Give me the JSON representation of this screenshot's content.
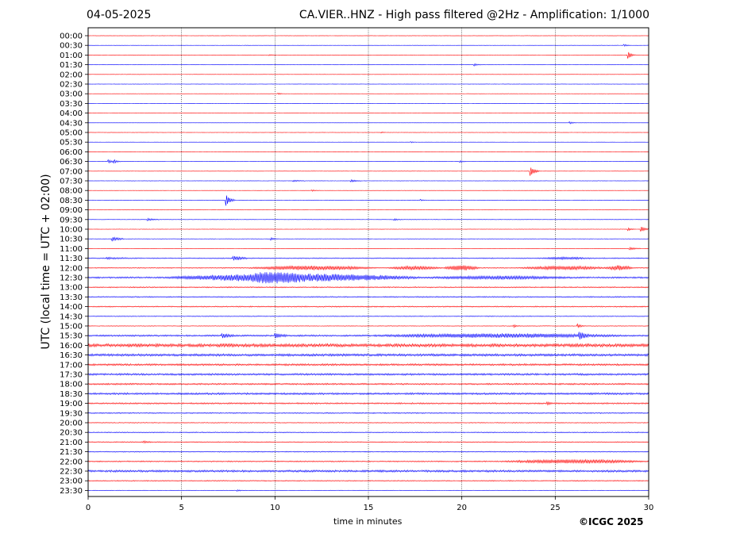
{
  "header": {
    "date": "04-05-2025",
    "title": "CA.VIER..HNZ - High pass filtered @2Hz - Amplification: 1/1000"
  },
  "footer": {
    "copyright": "©ICGC 2025"
  },
  "colors": {
    "trace_even": "#ff0000",
    "trace_odd": "#0000ff",
    "axis": "#000000",
    "grid": "#000000"
  },
  "chart_data": {
    "type": "line",
    "xlabel": "time in minutes",
    "ylabel": "UTC (local time = UTC + 02:00)",
    "xlim": [
      0,
      30
    ],
    "x_ticks": [
      "0",
      "5",
      "10",
      "15",
      "20",
      "25",
      "30"
    ],
    "x_tick_values": [
      0,
      5,
      10,
      15,
      20,
      25,
      30
    ],
    "grid": "vertical dotted at x ticks",
    "trace_spacing_minutes": 30,
    "rows": [
      {
        "label": "00:00",
        "noise": 0.15,
        "events": []
      },
      {
        "label": "00:30",
        "noise": 0.2,
        "events": [
          {
            "t": 28.7,
            "amp": 1.5,
            "dur": 0.1
          }
        ]
      },
      {
        "label": "01:00",
        "noise": 0.2,
        "events": [
          {
            "t": 28.9,
            "amp": 5,
            "dur": 0.1
          },
          {
            "t": 9.7,
            "amp": 1,
            "dur": 0.1
          }
        ]
      },
      {
        "label": "01:30",
        "noise": 0.2,
        "events": [
          {
            "t": 20.7,
            "amp": 1.5,
            "dur": 0.1
          }
        ]
      },
      {
        "label": "02:00",
        "noise": 0.2,
        "events": []
      },
      {
        "label": "02:30",
        "noise": 0.15,
        "events": []
      },
      {
        "label": "03:00",
        "noise": 0.2,
        "events": [
          {
            "t": 10.2,
            "amp": 1,
            "dur": 0.1
          }
        ]
      },
      {
        "label": "03:30",
        "noise": 0.15,
        "events": []
      },
      {
        "label": "04:00",
        "noise": 0.2,
        "events": []
      },
      {
        "label": "04:30",
        "noise": 0.15,
        "events": [
          {
            "t": 25.8,
            "amp": 1.5,
            "dur": 0.1
          }
        ]
      },
      {
        "label": "05:00",
        "noise": 0.15,
        "events": [
          {
            "t": 15.7,
            "amp": 0.8,
            "dur": 0.1
          }
        ]
      },
      {
        "label": "05:30",
        "noise": 0.15,
        "events": [
          {
            "t": 17.3,
            "amp": 0.8,
            "dur": 0.1
          }
        ]
      },
      {
        "label": "06:00",
        "noise": 0.15,
        "events": []
      },
      {
        "label": "06:30",
        "noise": 0.25,
        "events": [
          {
            "t": 1.1,
            "amp": 2,
            "dur": 0.15
          },
          {
            "t": 1.4,
            "amp": 2,
            "dur": 0.1
          },
          {
            "t": 19.9,
            "amp": 1.5,
            "dur": 0.1
          }
        ]
      },
      {
        "label": "07:00",
        "noise": 0.2,
        "events": [
          {
            "t": 23.7,
            "amp": 6,
            "dur": 0.15
          }
        ]
      },
      {
        "label": "07:30",
        "noise": 0.25,
        "events": [
          {
            "t": 14.1,
            "amp": 1.5,
            "dur": 0.2
          },
          {
            "t": 11,
            "amp": 1,
            "dur": 0.3
          }
        ]
      },
      {
        "label": "08:00",
        "noise": 0.2,
        "events": [
          {
            "t": 12,
            "amp": 1,
            "dur": 0.1
          }
        ]
      },
      {
        "label": "08:30",
        "noise": 0.2,
        "events": [
          {
            "t": 7.4,
            "amp": 7,
            "dur": 0.15
          },
          {
            "t": 17.8,
            "amp": 1,
            "dur": 0.1
          }
        ]
      },
      {
        "label": "09:00",
        "noise": 0.2,
        "events": []
      },
      {
        "label": "09:30",
        "noise": 0.3,
        "events": [
          {
            "t": 3.2,
            "amp": 1.5,
            "dur": 0.3
          },
          {
            "t": 16.4,
            "amp": 1,
            "dur": 0.2
          }
        ]
      },
      {
        "label": "10:00",
        "noise": 0.25,
        "events": [
          {
            "t": 28.9,
            "amp": 2,
            "dur": 0.1
          },
          {
            "t": 29.6,
            "amp": 3,
            "dur": 0.2
          }
        ]
      },
      {
        "label": "10:30",
        "noise": 0.3,
        "events": [
          {
            "t": 1.3,
            "amp": 3,
            "dur": 0.3
          },
          {
            "t": 9.8,
            "amp": 1.5,
            "dur": 0.1
          }
        ]
      },
      {
        "label": "11:00",
        "noise": 0.25,
        "events": [
          {
            "t": 29,
            "amp": 1.5,
            "dur": 0.3
          }
        ]
      },
      {
        "label": "11:30",
        "noise": 0.6,
        "events": [
          {
            "t": 7.8,
            "amp": 2.5,
            "dur": 0.4
          },
          {
            "t": 1,
            "amp": 1,
            "dur": 0.8
          },
          {
            "t": 24,
            "amp": 1.2,
            "dur": 3
          }
        ]
      },
      {
        "label": "12:00",
        "noise": 0.6,
        "events": [
          {
            "t": 8.5,
            "amp": 2.5,
            "dur": 7
          },
          {
            "t": 16,
            "amp": 2,
            "dur": 3
          },
          {
            "t": 19,
            "amp": 3,
            "dur": 2
          },
          {
            "t": 23,
            "amp": 2,
            "dur": 5
          },
          {
            "t": 27.7,
            "amp": 3,
            "dur": 1.5
          }
        ]
      },
      {
        "label": "12:30",
        "noise": 1.0,
        "events": [
          {
            "t": 4,
            "amp": 4.5,
            "dur": 14
          },
          {
            "t": 8.5,
            "amp": 3,
            "dur": 3
          },
          {
            "t": 18,
            "amp": 1.5,
            "dur": 8
          }
        ]
      },
      {
        "label": "13:00",
        "noise": 0.7,
        "events": []
      },
      {
        "label": "13:30",
        "noise": 0.7,
        "events": []
      },
      {
        "label": "14:00",
        "noise": 0.7,
        "events": []
      },
      {
        "label": "14:30",
        "noise": 0.5,
        "events": []
      },
      {
        "label": "15:00",
        "noise": 0.4,
        "events": [
          {
            "t": 22.8,
            "amp": 1.5,
            "dur": 0.1
          },
          {
            "t": 26.2,
            "amp": 3,
            "dur": 0.1
          }
        ]
      },
      {
        "label": "15:30",
        "noise": 1.0,
        "events": [
          {
            "t": 7.2,
            "amp": 2.5,
            "dur": 0.3
          },
          {
            "t": 10,
            "amp": 3,
            "dur": 0.3
          },
          {
            "t": 15,
            "amp": 2,
            "dur": 14
          },
          {
            "t": 26.3,
            "amp": 4,
            "dur": 0.2
          }
        ]
      },
      {
        "label": "16:00",
        "noise": 2.0,
        "events": []
      },
      {
        "label": "16:30",
        "noise": 1.5,
        "events": []
      },
      {
        "label": "17:00",
        "noise": 1.2,
        "events": []
      },
      {
        "label": "17:30",
        "noise": 1.2,
        "events": []
      },
      {
        "label": "18:00",
        "noise": 1.0,
        "events": []
      },
      {
        "label": "18:30",
        "noise": 1.2,
        "events": []
      },
      {
        "label": "19:00",
        "noise": 0.9,
        "events": [
          {
            "t": 24.6,
            "amp": 1.5,
            "dur": 0.1
          }
        ]
      },
      {
        "label": "19:30",
        "noise": 0.7,
        "events": []
      },
      {
        "label": "20:00",
        "noise": 0.5,
        "events": []
      },
      {
        "label": "20:30",
        "noise": 0.6,
        "events": []
      },
      {
        "label": "21:00",
        "noise": 0.6,
        "events": [
          {
            "t": 3,
            "amp": 1.2,
            "dur": 0.2
          }
        ]
      },
      {
        "label": "21:30",
        "noise": 0.6,
        "events": []
      },
      {
        "label": "22:00",
        "noise": 0.7,
        "events": [
          {
            "t": 22,
            "amp": 2,
            "dur": 8
          }
        ]
      },
      {
        "label": "22:30",
        "noise": 1.3,
        "events": []
      },
      {
        "label": "23:00",
        "noise": 0.6,
        "events": []
      },
      {
        "label": "23:30",
        "noise": 0.3,
        "events": [
          {
            "t": 8,
            "amp": 1,
            "dur": 0.1
          }
        ]
      }
    ]
  }
}
